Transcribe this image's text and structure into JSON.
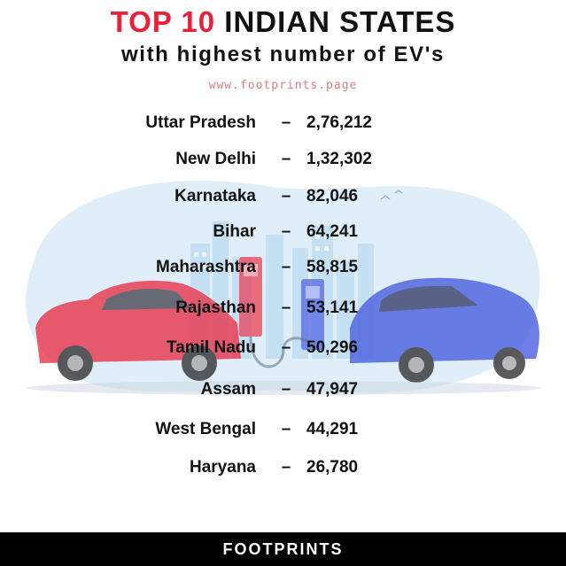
{
  "header": {
    "title_accent": "TOP 10",
    "title_rest": " INDIAN STATES",
    "subtitle": "with highest number of EV's",
    "website": "www.footprints.page"
  },
  "ranking": {
    "separator": "–",
    "items": [
      {
        "state": "Uttar Pradesh",
        "value": "2,76,212"
      },
      {
        "state": "New Delhi",
        "value": "1,32,302"
      },
      {
        "state": "Karnataka",
        "value": "82,046"
      },
      {
        "state": "Bihar",
        "value": "64,241"
      },
      {
        "state": "Maharashtra",
        "value": "58,815"
      },
      {
        "state": "Rajasthan",
        "value": "53,141"
      },
      {
        "state": "Tamil Nadu",
        "value": "50,296"
      },
      {
        "state": "Assam",
        "value": "47,947"
      },
      {
        "state": "West Bengal",
        "value": "44,291"
      },
      {
        "state": "Haryana",
        "value": "26,780"
      }
    ]
  },
  "footer": {
    "brand": "FOOTPRINTS"
  },
  "colors": {
    "accent": "#e8213a",
    "red_car": "#e8354a",
    "blue_car": "#4a5fe0",
    "backdrop": "#dbeaf6"
  }
}
